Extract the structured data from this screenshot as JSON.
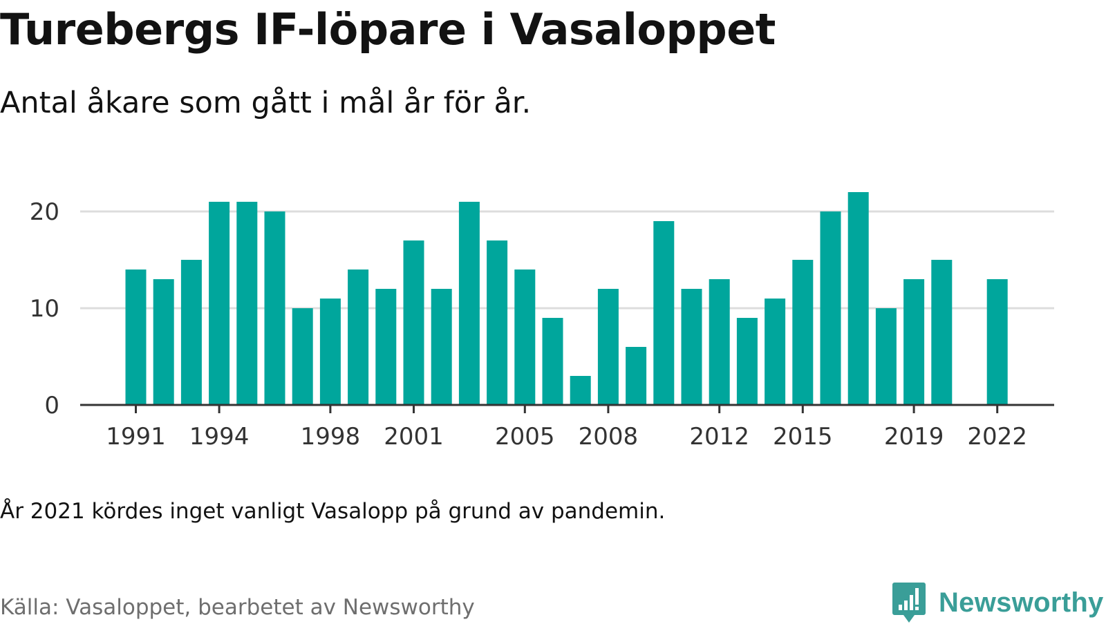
{
  "title": "Turebergs IF-löpare i Vasaloppet",
  "subtitle": "Antal åkare som gått i mål år för år.",
  "note": "År 2021 kördes inget vanligt Vasalopp på grund av pandemin.",
  "source": "Källa: Vasaloppet, bearbetet av Newsworthy",
  "brand": {
    "name": "Newsworthy",
    "icon": "bar-chart-speech-bubble-icon"
  },
  "colors": {
    "bar": "#00a69c",
    "grid": "#dddddd",
    "axis": "#333333",
    "brand": "#3a9e98"
  },
  "chart_data": {
    "type": "bar",
    "title": "Turebergs IF-löpare i Vasaloppet",
    "subtitle": "Antal åkare som gått i mål år för år.",
    "xlabel": "",
    "ylabel": "",
    "categories": [
      1991,
      1992,
      1993,
      1994,
      1995,
      1996,
      1997,
      1998,
      1999,
      2000,
      2001,
      2002,
      2003,
      2004,
      2005,
      2006,
      2007,
      2008,
      2009,
      2010,
      2011,
      2012,
      2013,
      2014,
      2015,
      2016,
      2017,
      2018,
      2019,
      2020,
      2021,
      2022
    ],
    "values": [
      14,
      13,
      15,
      21,
      21,
      20,
      10,
      11,
      14,
      12,
      17,
      12,
      21,
      17,
      14,
      9,
      3,
      12,
      6,
      19,
      12,
      13,
      9,
      11,
      15,
      20,
      22,
      10,
      13,
      15,
      null,
      13
    ],
    "ylim": [
      0,
      22
    ],
    "yticks": [
      0,
      10,
      20
    ],
    "xtick_labels": [
      "1991",
      "1994",
      "1998",
      "2001",
      "2005",
      "2008",
      "2012",
      "2015",
      "2019",
      "2022"
    ],
    "grid": true,
    "legend": "none"
  }
}
